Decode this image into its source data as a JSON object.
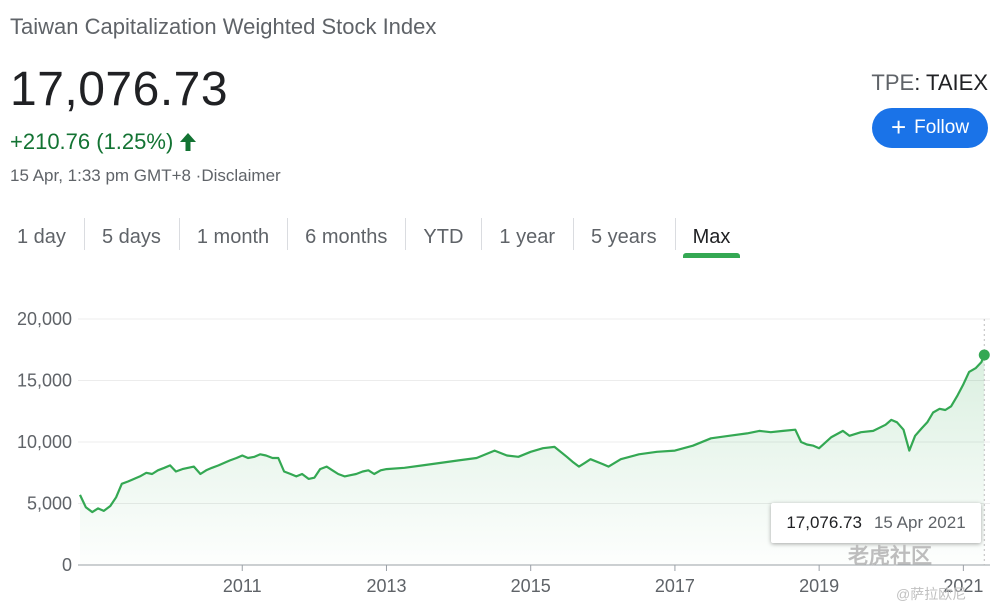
{
  "header": {
    "title": "Taiwan Capitalization Weighted Stock Index",
    "price": "17,076.73",
    "change": "+210.76 (1.25%)",
    "meta": "15 Apr, 1:33 pm GMT+8 ·Disclaimer",
    "ticker_exchange": "TPE",
    "ticker_sep": ": ",
    "ticker_symbol": "TAIEX",
    "follow_label": "Follow"
  },
  "tabs": [
    {
      "label": "1 day"
    },
    {
      "label": "5 days"
    },
    {
      "label": "1 month"
    },
    {
      "label": "6 months"
    },
    {
      "label": "YTD"
    },
    {
      "label": "1 year"
    },
    {
      "label": "5 years"
    },
    {
      "label": "Max",
      "active": true
    }
  ],
  "tooltip": {
    "value": "17,076.73",
    "date": "15 Apr 2021"
  },
  "watermark": {
    "main": "老虎社区",
    "sub": "@萨拉欧尼"
  },
  "colors": {
    "up": "#137333",
    "line": "#34a853",
    "accent": "#1a73e8"
  },
  "chart_data": {
    "type": "area",
    "ylim": [
      0,
      20000
    ],
    "yticks": [
      0,
      5000,
      10000,
      15000,
      20000
    ],
    "ytick_labels": [
      "0",
      "5,000",
      "10,000",
      "15,000",
      "20,000"
    ],
    "xlim": [
      2008.75,
      2021.3
    ],
    "xticks": [
      2011,
      2013,
      2015,
      2017,
      2019,
      2021
    ],
    "xtick_labels": [
      "2011",
      "2013",
      "2015",
      "2017",
      "2019",
      "2021"
    ],
    "grid": true,
    "series": [
      {
        "x": [
          2008.75,
          2008.83,
          2008.92,
          2009.0,
          2009.08,
          2009.17,
          2009.25,
          2009.33,
          2009.42,
          2009.5,
          2009.58,
          2009.67,
          2009.75,
          2009.83,
          2009.92,
          2010.0,
          2010.08,
          2010.17,
          2010.25,
          2010.33,
          2010.42,
          2010.5,
          2010.58,
          2010.67,
          2010.75,
          2010.83,
          2010.92,
          2011.0,
          2011.08,
          2011.17,
          2011.25,
          2011.33,
          2011.42,
          2011.5,
          2011.58,
          2011.67,
          2011.75,
          2011.83,
          2011.92,
          2012.0,
          2012.08,
          2012.17,
          2012.25,
          2012.33,
          2012.42,
          2012.5,
          2012.58,
          2012.67,
          2012.75,
          2012.83,
          2012.92,
          2013.0,
          2013.25,
          2013.5,
          2013.75,
          2014.0,
          2014.25,
          2014.5,
          2014.67,
          2014.83,
          2015.0,
          2015.17,
          2015.33,
          2015.5,
          2015.58,
          2015.67,
          2015.75,
          2015.83,
          2016.0,
          2016.08,
          2016.25,
          2016.5,
          2016.75,
          2017.0,
          2017.25,
          2017.5,
          2017.75,
          2018.0,
          2018.17,
          2018.33,
          2018.5,
          2018.67,
          2018.75,
          2018.83,
          2018.92,
          2019.0,
          2019.17,
          2019.33,
          2019.42,
          2019.58,
          2019.75,
          2019.92,
          2020.0,
          2020.08,
          2020.17,
          2020.25,
          2020.33,
          2020.42,
          2020.5,
          2020.58,
          2020.67,
          2020.75,
          2020.83,
          2020.92,
          2021.0,
          2021.08,
          2021.17,
          2021.25,
          2021.29
        ],
        "values": [
          5700,
          4700,
          4300,
          4600,
          4400,
          4800,
          5500,
          6600,
          6800,
          7000,
          7200,
          7500,
          7400,
          7700,
          7900,
          8100,
          7600,
          7800,
          7900,
          8000,
          7400,
          7700,
          7900,
          8100,
          8300,
          8500,
          8700,
          8900,
          8700,
          8800,
          9000,
          8900,
          8700,
          8700,
          7600,
          7400,
          7200,
          7400,
          7000,
          7100,
          7800,
          8000,
          7700,
          7400,
          7200,
          7300,
          7400,
          7600,
          7700,
          7400,
          7700,
          7800,
          7900,
          8100,
          8300,
          8500,
          8700,
          9300,
          8900,
          8800,
          9200,
          9500,
          9600,
          8800,
          8400,
          8000,
          8300,
          8600,
          8200,
          8000,
          8600,
          9000,
          9200,
          9300,
          9700,
          10300,
          10500,
          10700,
          10900,
          10800,
          10900,
          11000,
          10000,
          9800,
          9700,
          9500,
          10400,
          10900,
          10500,
          10800,
          10900,
          11400,
          11800,
          11600,
          11000,
          9300,
          10500,
          11100,
          11600,
          12400,
          12700,
          12600,
          12900,
          13800,
          14700,
          15700,
          16000,
          16500,
          17076.73
        ]
      }
    ]
  }
}
